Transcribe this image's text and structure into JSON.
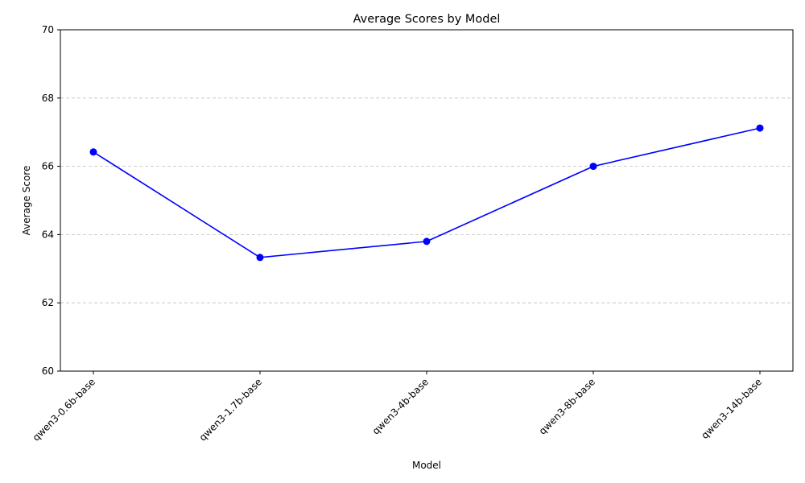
{
  "chart_data": {
    "type": "line",
    "title": "Average Scores by Model",
    "xlabel": "Model",
    "ylabel": "Average Score",
    "categories": [
      "qwen3-0.6b-base",
      "qwen3-1.7b-base",
      "qwen3-4b-base",
      "qwen3-8b-base",
      "qwen3-14b-base"
    ],
    "series": [
      {
        "values": [
          66.42,
          63.33,
          63.8,
          66.0,
          67.12
        ],
        "color": "#0000ff",
        "marker": "circle"
      }
    ],
    "ylim": [
      60,
      70
    ],
    "yticks": [
      60,
      62,
      64,
      66,
      68,
      70
    ],
    "grid": "y-dashed",
    "legend": "none"
  }
}
